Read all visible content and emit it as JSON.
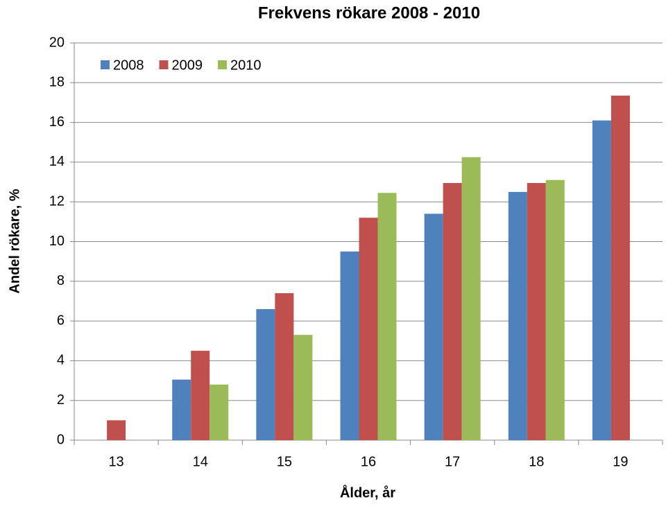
{
  "chart_data": {
    "type": "bar",
    "title": "Frekvens rökare 2008 - 2010",
    "x_label": "Ålder, år",
    "y_label": "Andel rökare, %",
    "categories": [
      "13",
      "14",
      "15",
      "16",
      "17",
      "18",
      "19"
    ],
    "series": [
      {
        "name": "2008",
        "color": "#4f81bd",
        "values": [
          null,
          3.05,
          6.6,
          9.5,
          11.4,
          12.5,
          16.1
        ]
      },
      {
        "name": "2009",
        "color": "#c0504d",
        "values": [
          1.0,
          4.5,
          7.4,
          11.2,
          12.95,
          12.95,
          17.35
        ]
      },
      {
        "name": "2010",
        "color": "#9bbb59",
        "values": [
          null,
          2.8,
          5.3,
          12.45,
          14.25,
          13.1,
          null
        ]
      }
    ],
    "ylim": [
      0,
      20
    ],
    "yticks": [
      0,
      2,
      4,
      6,
      8,
      10,
      12,
      14,
      16,
      18,
      20
    ],
    "grid": true,
    "legend": "top-left"
  }
}
